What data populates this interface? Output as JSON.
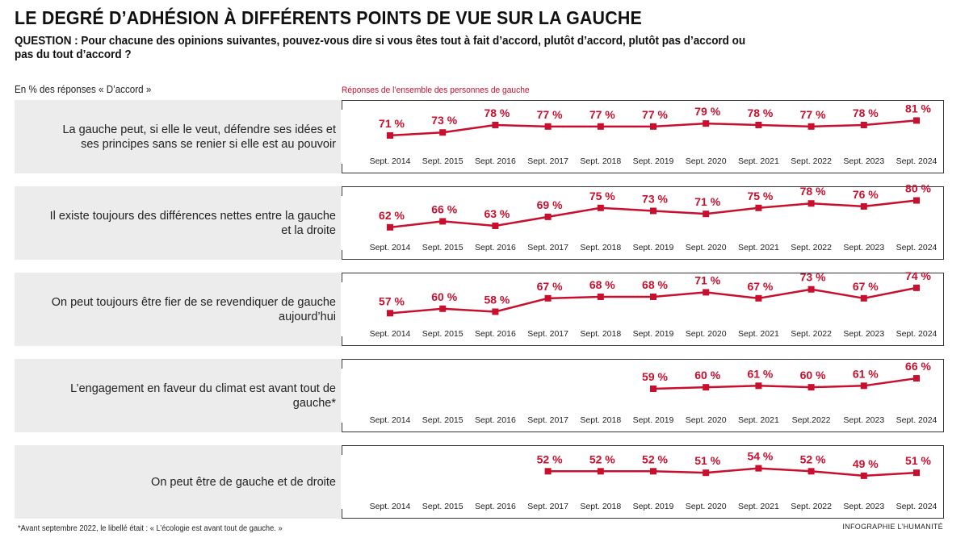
{
  "header": {
    "title": "LE DEGRÉ D’ADHÉSION À DIFFÉRENTS POINTS DE VUE SUR LA GAUCHE",
    "question": "QUESTION : Pour chacune des opinions suivantes, pouvez-vous dire si vous êtes tout à fait d’accord, plutôt d’accord, plutôt pas d’accord ou pas du tout d’accord ?",
    "unit_label": "En % des réponses « D’accord »",
    "series_caption": "Réponses de l’ensemble des personnes de gauche"
  },
  "colors": {
    "accent": "#c8102e",
    "panel_bg": "#ececec"
  },
  "chart_data": [
    {
      "type": "line",
      "label": "La gauche peut, si elle le veut, défendre ses idées et ses principes sans se renier si elle est au pouvoir",
      "x": [
        "Sept. 2014",
        "Sept. 2015",
        "Sept. 2016",
        "Sept. 2017",
        "Sept. 2018",
        "Sept. 2019",
        "Sept. 2020",
        "Sept. 2021",
        "Sept. 2022",
        "Sept. 2023",
        "Sept. 2024"
      ],
      "values": [
        71,
        73,
        78,
        77,
        77,
        77,
        79,
        78,
        77,
        78,
        81
      ],
      "value_labels": [
        "71 %",
        "73 %",
        "78 %",
        "77 %",
        "77 %",
        "77 %",
        "79 %",
        "78 %",
        "77 %",
        "78 %",
        "81 %"
      ]
    },
    {
      "type": "line",
      "label": "Il existe toujours des différences nettes entre la gauche et la droite",
      "x": [
        "Sept. 2014",
        "Sept. 2015",
        "Sept. 2016",
        "Sept. 2017",
        "Sept. 2018",
        "Sept. 2019",
        "Sept. 2020",
        "Sept. 2021",
        "Sept. 2022",
        "Sept. 2023",
        "Sept. 2024"
      ],
      "values": [
        62,
        66,
        63,
        69,
        75,
        73,
        71,
        75,
        78,
        76,
        80
      ],
      "value_labels": [
        "62 %",
        "66 %",
        "63 %",
        "69 %",
        "75 %",
        "73 %",
        "71 %",
        "75 %",
        "78 %",
        "76 %",
        "80 %"
      ]
    },
    {
      "type": "line",
      "label": "On peut toujours être fier de se revendiquer de gauche aujourd’hui",
      "x": [
        "Sept. 2014",
        "Sept. 2015",
        "Sept. 2016",
        "Sept. 2017",
        "Sept. 2018",
        "Sept. 2019",
        "Sept. 2020",
        "Sept. 2021",
        "Sept. 2022",
        "Sept. 2023",
        "Sept. 2024"
      ],
      "values": [
        57,
        60,
        58,
        67,
        68,
        68,
        71,
        67,
        73,
        67,
        74
      ],
      "value_labels": [
        "57 %",
        "60 %",
        "58 %",
        "67 %",
        "68 %",
        "68 %",
        "71 %",
        "67 %",
        "73 %",
        "67 %",
        "74 %"
      ]
    },
    {
      "type": "line",
      "label": "L’engagement en faveur du climat est avant tout de gauche*",
      "x": [
        "Sept. 2014",
        "Sept. 2015",
        "Sept. 2016",
        "Sept. 2017",
        "Sept. 2018",
        "Sept. 2019",
        "Sept. 2020",
        "Sept. 2021",
        "Sept.2022",
        "Sept. 2023",
        "Sept. 2024"
      ],
      "values": [
        null,
        null,
        null,
        null,
        null,
        59,
        60,
        61,
        60,
        61,
        66
      ],
      "value_labels": [
        null,
        null,
        null,
        null,
        null,
        "59 %",
        "60 %",
        "61 %",
        "60 %",
        "61 %",
        "66 %"
      ]
    },
    {
      "type": "line",
      "label": "On peut être de gauche et de droite",
      "x": [
        "Sept. 2014",
        "Sept. 2015",
        "Sept. 2016",
        "Sept. 2017",
        "Sept. 2018",
        "Sept. 2019",
        "Sept. 2020",
        "Sept. 2021",
        "Sept. 2022",
        "Sept. 2023",
        "Sept. 2024"
      ],
      "values": [
        null,
        null,
        null,
        52,
        52,
        52,
        51,
        54,
        52,
        49,
        51
      ],
      "value_labels": [
        null,
        null,
        null,
        "52 %",
        "52 %",
        "52 %",
        "51 %",
        "54 %",
        "52 %",
        "49 %",
        "51 %"
      ]
    }
  ],
  "footer": {
    "footnote": "*Avant septembre 2022, le libellé était : « L’écologie est avant tout de gauche. »",
    "credit": "INFOGRAPHIE L’HUMANITÉ"
  }
}
